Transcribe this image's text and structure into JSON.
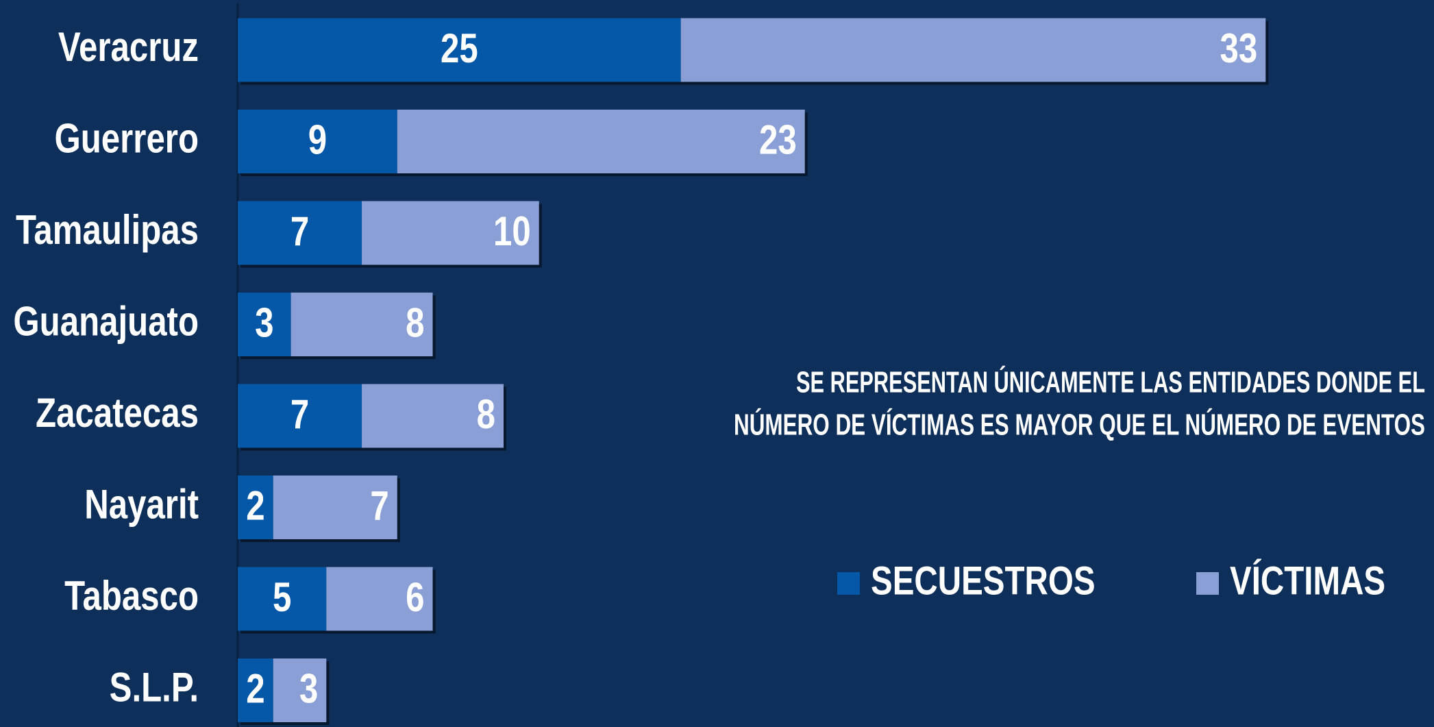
{
  "chart_data": {
    "type": "stacked-bar",
    "orientation": "horizontal",
    "categories": [
      "Veracruz",
      "Guerrero",
      "Tamaulipas",
      "Guanajuato",
      "Zacatecas",
      "Nayarit",
      "Tabasco",
      "S.L.P."
    ],
    "series": [
      {
        "name": "SECUESTROS",
        "color": "#0558a8",
        "values": [
          25,
          9,
          7,
          3,
          7,
          2,
          5,
          2
        ]
      },
      {
        "name": "VÍCTIMAS",
        "color": "#8a9fd6",
        "values": [
          33,
          23,
          10,
          8,
          8,
          7,
          6,
          3
        ]
      }
    ],
    "xlim": [
      0,
      67.5
    ],
    "annotation": [
      "SE REPRESENTAN ÚNICAMENTE LAS ENTIDADES DONDE EL",
      "NÚMERO DE VÍCTIMAS ES MAYOR QUE EL NÚMERO DE EVENTOS"
    ]
  }
}
